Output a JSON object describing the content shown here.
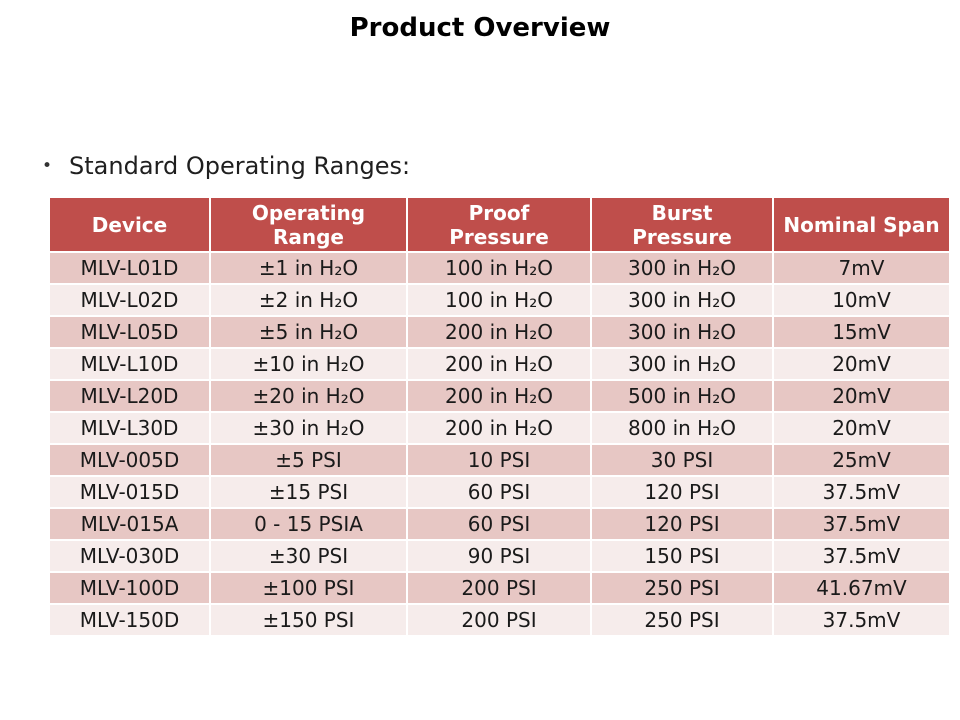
{
  "slide": {
    "title": "Product Overview",
    "bullet_glyph": "•",
    "bullet": "Standard Operating Ranges:"
  },
  "colors": {
    "header_bg": "#BF4E4B",
    "header_text": "#FFFFFF",
    "row_dark": "#E7C7C4",
    "row_light": "#F6ECEB",
    "grid_line": "#FFFFFF",
    "cell_text": "#1A1A1A"
  },
  "table": {
    "columns": [
      {
        "id": "device",
        "label": "Device",
        "two_line": false
      },
      {
        "id": "operating-range",
        "label": "Operating Range",
        "two_line": true
      },
      {
        "id": "proof-pressure",
        "label": "Proof Pressure",
        "two_line": true
      },
      {
        "id": "burst-pressure",
        "label": "Burst Pressure",
        "two_line": true
      },
      {
        "id": "nominal-span",
        "label": "Nominal Span",
        "two_line": false
      }
    ],
    "rows": [
      [
        "MLV-L01D",
        "±1 in H₂O",
        "100 in H₂O",
        "300 in H₂O",
        "7mV"
      ],
      [
        "MLV-L02D",
        "±2 in H₂O",
        "100 in H₂O",
        "300 in H₂O",
        "10mV"
      ],
      [
        "MLV-L05D",
        "±5 in H₂O",
        "200 in H₂O",
        "300 in H₂O",
        "15mV"
      ],
      [
        "MLV-L10D",
        "±10 in H₂O",
        "200 in H₂O",
        "300 in H₂O",
        "20mV"
      ],
      [
        "MLV-L20D",
        "±20 in H₂O",
        "200 in H₂O",
        "500 in H₂O",
        "20mV"
      ],
      [
        "MLV-L30D",
        "±30 in H₂O",
        "200 in H₂O",
        "800 in H₂O",
        "20mV"
      ],
      [
        "MLV-005D",
        "±5 PSI",
        "10 PSI",
        "30 PSI",
        "25mV"
      ],
      [
        "MLV-015D",
        "±15 PSI",
        "60 PSI",
        "120 PSI",
        "37.5mV"
      ],
      [
        "MLV-015A",
        "0 - 15 PSIA",
        "60 PSI",
        "120 PSI",
        "37.5mV"
      ],
      [
        "MLV-030D",
        "±30 PSI",
        "90 PSI",
        "150 PSI",
        "37.5mV"
      ],
      [
        "MLV-100D",
        "±100 PSI",
        "200 PSI",
        "250 PSI",
        "41.67mV"
      ],
      [
        "MLV-150D",
        "±150 PSI",
        "200 PSI",
        "250 PSI",
        "37.5mV"
      ]
    ]
  }
}
